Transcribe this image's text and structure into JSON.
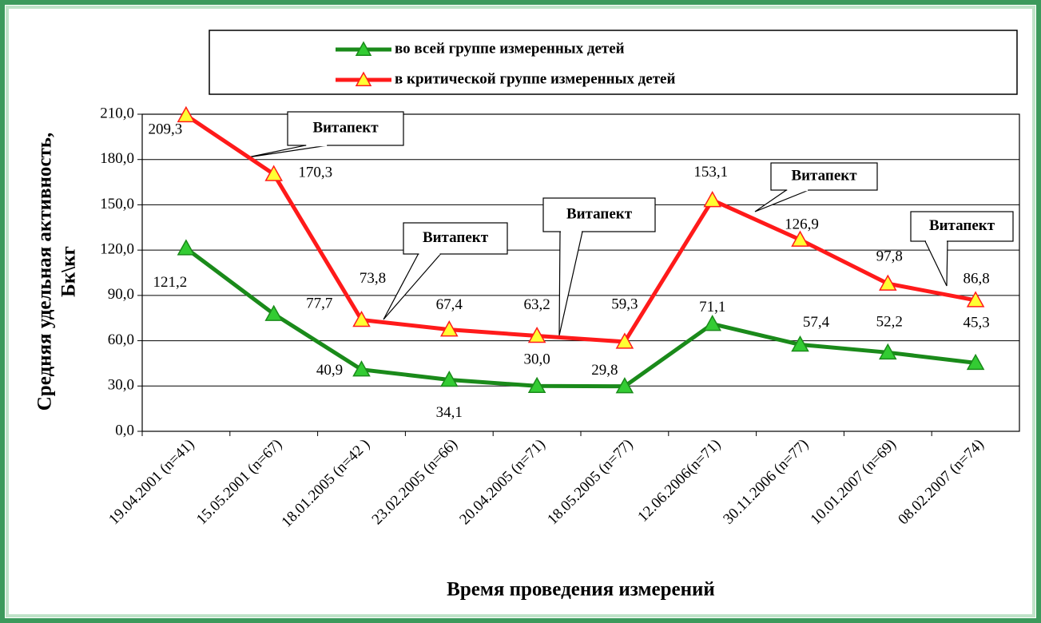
{
  "chart_data": {
    "type": "line",
    "x_label": "Время проведения измерений",
    "y_label": [
      "Средняя удельная активность,",
      "Бк\\кг"
    ],
    "categories": [
      "19.04.2001 (n=41)",
      "15.05.2001 (n=67)",
      "18.01.2005 (n=42 )",
      "23.02.2005 (n=66)",
      "20.04.2005 (n=71)",
      "18.05.2005 (n=77)",
      "12.06.2006(n=71)",
      "30.11.2006 (n=77)",
      "10.01.2007 (n=69)",
      "08.02.2007 (n=74)"
    ],
    "series": [
      {
        "name": "во всей группе измеренных детей",
        "color": "#1a8a1a",
        "marker_color": "#33cc33",
        "values": [
          121.2,
          77.7,
          40.9,
          34.1,
          30.0,
          29.8,
          71.1,
          57.4,
          52.2,
          45.3
        ],
        "value_labels": [
          "121,2",
          "77,7",
          "40,9",
          "34,1",
          "30,0",
          "29,8",
          "71,1",
          "57,4",
          "52,2",
          "45,3"
        ]
      },
      {
        "name": "в критической группе измеренных детей",
        "color": "#ff1a1a",
        "marker_color": "#ffff33",
        "values": [
          209.3,
          170.3,
          73.8,
          67.4,
          63.2,
          59.3,
          153.1,
          126.9,
          97.8,
          86.8
        ],
        "value_labels": [
          "209,3",
          "170,3",
          "73,8",
          "67,4",
          "63,2",
          "59,3",
          "153,1",
          "126,9",
          "97,8",
          "86,8"
        ]
      }
    ],
    "ylim": [
      0,
      210
    ],
    "yticks": [
      {
        "value": 0,
        "label": "0,0"
      },
      {
        "value": 30,
        "label": "30,0"
      },
      {
        "value": 60,
        "label": "60,0"
      },
      {
        "value": 90,
        "label": "90,0"
      },
      {
        "value": 120,
        "label": "120,0"
      },
      {
        "value": 150,
        "label": "150,0"
      },
      {
        "value": 180,
        "label": "180,0"
      },
      {
        "value": 210,
        "label": "210,0"
      }
    ],
    "grid": true,
    "annotations": [
      "Витапект",
      "Витапект",
      "Витапект",
      "Витапект",
      "Витапект"
    ]
  }
}
